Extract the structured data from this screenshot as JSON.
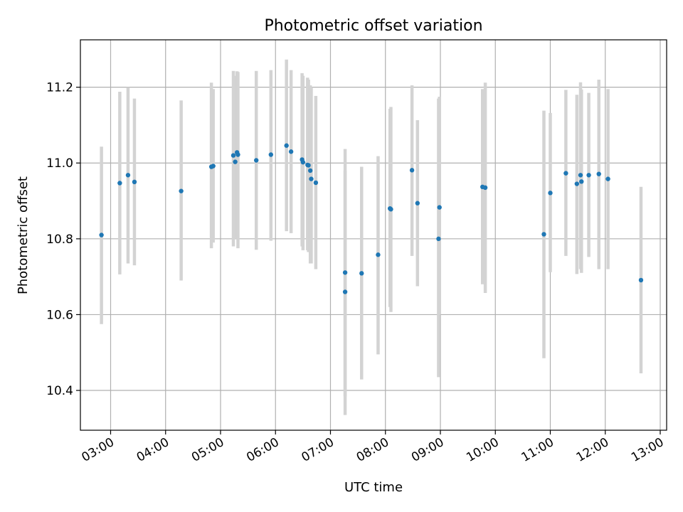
{
  "chart_data": {
    "type": "scatter",
    "title": "Photometric offset variation",
    "xlabel": "UTC time",
    "ylabel": "Photometric offset",
    "xlim": [
      "02:27",
      "13:07"
    ],
    "ylim": [
      10.295,
      11.325
    ],
    "x_ticks": [
      "03:00",
      "04:00",
      "05:00",
      "06:00",
      "07:00",
      "08:00",
      "09:00",
      "10:00",
      "11:00",
      "12:00",
      "13:00"
    ],
    "y_ticks": [
      "10.4",
      "10.6",
      "10.8",
      "11.0",
      "11.2"
    ],
    "grid": true,
    "colors": {
      "points": "#1f77b4",
      "error_bars": "#d3d3d3",
      "grid": "#b0b0b0"
    },
    "series": [
      {
        "x": [
          "02:50",
          "03:10",
          "03:19",
          "03:26",
          "04:17",
          "04:50",
          "04:52",
          "05:14",
          "05:16",
          "05:18",
          "05:19",
          "05:39",
          "05:55",
          "06:12",
          "06:17",
          "06:29",
          "06:30",
          "06:35",
          "06:36",
          "06:38",
          "06:39",
          "06:44",
          "07:16",
          "07:16",
          "07:34",
          "07:52",
          "08:05",
          "08:06",
          "08:29",
          "08:35",
          "08:58",
          "08:59",
          "09:46",
          "09:49",
          "10:53",
          "11:00",
          "11:17",
          "11:29",
          "11:33",
          "11:34",
          "11:42",
          "11:53",
          "12:03",
          "12:39"
        ],
        "y": [
          10.81,
          10.947,
          10.968,
          10.95,
          10.926,
          10.99,
          10.992,
          11.02,
          11.003,
          11.028,
          11.022,
          11.007,
          11.022,
          11.046,
          11.03,
          11.009,
          11.002,
          10.995,
          10.994,
          10.98,
          10.958,
          10.948,
          10.66,
          10.711,
          10.709,
          10.758,
          10.88,
          10.878,
          10.981,
          10.894,
          10.8,
          10.883,
          10.937,
          10.935,
          10.812,
          10.921,
          10.973,
          10.945,
          10.968,
          10.951,
          10.968,
          10.971,
          10.958,
          10.691
        ],
        "yerr_low": [
          10.575,
          10.706,
          10.735,
          10.73,
          10.69,
          10.775,
          10.79,
          10.78,
          10.8,
          10.805,
          10.775,
          10.771,
          10.795,
          10.82,
          10.815,
          10.78,
          10.77,
          10.77,
          10.765,
          10.735,
          10.735,
          10.72,
          10.335,
          10.385,
          10.429,
          10.495,
          10.62,
          10.607,
          10.755,
          10.675,
          10.435,
          10.6,
          10.68,
          10.657,
          10.485,
          10.712,
          10.755,
          10.707,
          10.72,
          10.71,
          10.752,
          10.72,
          10.72,
          10.445
        ],
        "yerr_high": [
          11.043,
          11.188,
          11.2,
          11.17,
          11.165,
          11.212,
          11.195,
          11.243,
          11.23,
          11.242,
          11.24,
          11.243,
          11.245,
          11.273,
          11.245,
          11.237,
          11.23,
          11.225,
          11.22,
          11.205,
          11.2,
          11.177,
          10.98,
          11.037,
          10.99,
          11.018,
          11.143,
          11.148,
          11.205,
          11.113,
          11.17,
          11.175,
          11.195,
          11.212,
          11.138,
          11.132,
          11.193,
          11.18,
          11.213,
          11.194,
          11.185,
          11.22,
          11.195,
          10.937
        ]
      }
    ]
  }
}
